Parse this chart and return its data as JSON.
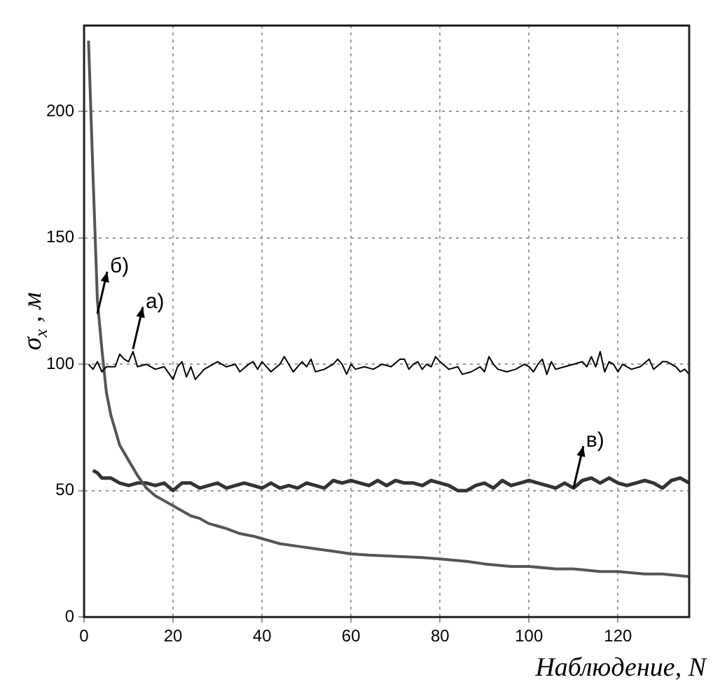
{
  "chart_data": {
    "type": "line",
    "xlabel": "Наблюдение, N",
    "ylabel": "σ$_{x}$ , м",
    "xlim": [
      0,
      136
    ],
    "ylim": [
      0,
      234
    ],
    "xticks": [
      0,
      20,
      40,
      60,
      80,
      100,
      120
    ],
    "yticks": [
      0,
      50,
      100,
      150,
      200
    ],
    "grid": true,
    "legend": false,
    "marker": "none",
    "line_style": "solid",
    "series": [
      {
        "color": "#000000",
        "x": [
          1,
          2,
          3,
          4,
          5,
          7,
          8,
          9,
          10,
          11,
          12,
          14,
          16,
          18,
          20,
          21,
          22,
          23,
          24,
          25,
          27,
          29,
          30,
          32,
          34,
          35,
          37,
          38,
          39,
          40,
          42,
          44,
          45,
          46,
          47,
          49,
          50,
          51,
          52,
          54,
          56,
          57,
          58,
          59,
          60,
          61,
          63,
          65,
          67,
          69,
          71,
          72,
          73,
          74,
          75,
          76,
          77,
          78,
          79,
          80,
          82,
          84,
          85,
          87,
          89,
          90,
          91,
          92,
          93,
          95,
          97,
          99,
          100,
          101,
          102,
          103,
          104,
          105,
          106,
          108,
          110,
          112,
          113,
          114,
          115,
          116,
          117,
          118,
          119,
          120,
          121,
          123,
          125,
          127,
          128,
          130,
          131,
          133,
          134,
          135,
          136
        ],
        "values": [
          100,
          98,
          101,
          97,
          99,
          99,
          104,
          102,
          101,
          105,
          99,
          100,
          98,
          99,
          94,
          99,
          101,
          95,
          99,
          94,
          98,
          100,
          101,
          99,
          100,
          97,
          100,
          101,
          98,
          101,
          97,
          100,
          103,
          100,
          97,
          101,
          99,
          102,
          97,
          98,
          100,
          102,
          100,
          96,
          100,
          98,
          99,
          98,
          100,
          99,
          102,
          102,
          98,
          100,
          101,
          98,
          100,
          99,
          103,
          101,
          98,
          99,
          96,
          97,
          99,
          97,
          103,
          100,
          98,
          97,
          98,
          100,
          99,
          97,
          100,
          102,
          96,
          101,
          98,
          99,
          100,
          101,
          99,
          103,
          99,
          105,
          97,
          101,
          100,
          97,
          100,
          98,
          99,
          102,
          98,
          101,
          101,
          99,
          97,
          98,
          96
        ]
      },
      {
        "color": "#555555",
        "x": [
          1,
          2,
          3,
          4,
          5,
          6,
          7,
          8,
          10,
          12,
          14,
          16,
          18,
          20,
          22,
          24,
          26,
          28,
          30,
          32,
          35,
          38,
          40,
          44,
          48,
          52,
          56,
          60,
          64,
          70,
          76,
          80,
          86,
          90,
          96,
          100,
          106,
          110,
          116,
          120,
          126,
          130,
          136
        ],
        "values": [
          228,
          175,
          125,
          106,
          89,
          80,
          74,
          68,
          62,
          56,
          51,
          48,
          46,
          44,
          42,
          40,
          39,
          37,
          36,
          35,
          33,
          32,
          31,
          29,
          28,
          27,
          26,
          25,
          24.5,
          24,
          23.5,
          23,
          22,
          21,
          20,
          20,
          19,
          19,
          18,
          18,
          17,
          17,
          16
        ]
      },
      {
        "color": "#333333",
        "x": [
          2,
          3,
          4,
          6,
          8,
          10,
          12,
          14,
          16,
          18,
          20,
          22,
          24,
          26,
          28,
          30,
          32,
          34,
          36,
          38,
          40,
          42,
          44,
          46,
          48,
          50,
          52,
          54,
          56,
          58,
          60,
          62,
          64,
          66,
          68,
          70,
          72,
          74,
          76,
          78,
          80,
          82,
          84,
          86,
          88,
          90,
          92,
          94,
          96,
          98,
          100,
          102,
          104,
          106,
          108,
          110,
          112,
          114,
          116,
          118,
          120,
          122,
          124,
          126,
          128,
          130,
          132,
          134,
          136
        ],
        "values": [
          58,
          57,
          55,
          55,
          53,
          52,
          53,
          53,
          52,
          53,
          50,
          53,
          53,
          51,
          52,
          53,
          51,
          52,
          53,
          52,
          51,
          53,
          51,
          52,
          51,
          53,
          52,
          51,
          54,
          53,
          54,
          53,
          52,
          54,
          52,
          54,
          53,
          53,
          52,
          54,
          53,
          52,
          50,
          50,
          52,
          53,
          51,
          54,
          52,
          53,
          54,
          53,
          52,
          51,
          53,
          51,
          54,
          55,
          53,
          55,
          53,
          52,
          53,
          54,
          53,
          51,
          54,
          55,
          53
        ]
      }
    ],
    "annotations": [
      {
        "text": "б)",
        "x": 3,
        "y": 120
      },
      {
        "text": "а)",
        "x": 11,
        "y": 106
      },
      {
        "text": "в)",
        "x": 110,
        "y": 51
      }
    ]
  }
}
